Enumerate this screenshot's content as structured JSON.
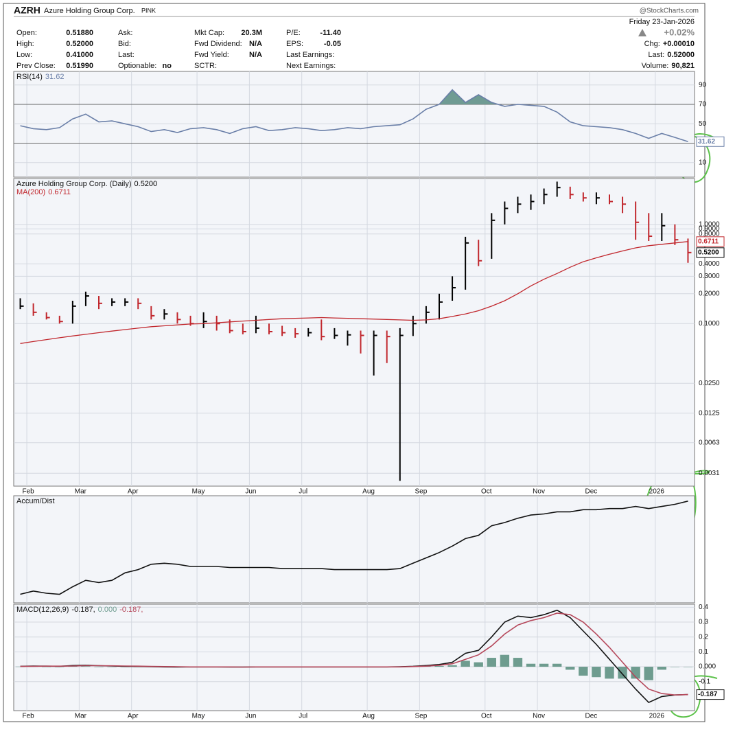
{
  "header": {
    "ticker": "AZRH",
    "name": "Azure Holding Group Corp.",
    "exchange": "PINK",
    "source": "@StockCharts.com",
    "date": "Friday 23-Jan-2026",
    "change_pct": "+0.02%",
    "fields": [
      [
        {
          "label": "Open:",
          "value": "0.51880"
        },
        {
          "label": "High:",
          "value": "0.52000"
        },
        {
          "label": "Low:",
          "value": "0.41000"
        },
        {
          "label": "Prev Close:",
          "value": "0.51990"
        }
      ],
      [
        {
          "label": "Ask:"
        },
        {
          "label": "Bid:"
        },
        {
          "label": "Last:"
        },
        {
          "label": "Optionable:",
          "value": "no"
        }
      ],
      [
        {
          "label": "Mkt Cap:",
          "value": "20.3M"
        },
        {
          "label": "Fwd Dividend:",
          "value": "N/A"
        },
        {
          "label": "Fwd Yield:",
          "value": "N/A"
        },
        {
          "label": "SCTR:"
        }
      ],
      [
        {
          "label": "P/E:",
          "value": "-11.40"
        },
        {
          "label": "EPS:",
          "value": "-0.05"
        },
        {
          "label": "Last Earnings:"
        },
        {
          "label": "Next Earnings:"
        }
      ]
    ],
    "right_fields": [
      {
        "label": "Chg:",
        "value": "+0.00010"
      },
      {
        "label": "Last:",
        "value": "0.52000"
      },
      {
        "label": "Volume:",
        "value": "90,821"
      }
    ]
  },
  "chart_data": [
    {
      "type": "line",
      "title": "RSI(14)",
      "ylim": [
        -5,
        104
      ],
      "yticks": [
        10,
        50,
        70,
        90
      ],
      "ref_lines": [
        30,
        70
      ],
      "shade_above": 70,
      "shade_color": "#6f9b93",
      "series": [
        {
          "color": "#6a7fa8",
          "legend_value": "31.62",
          "value_box": "31.62",
          "values": [
            48,
            45,
            44,
            46,
            55,
            60,
            52,
            53,
            50,
            47,
            42,
            44,
            41,
            45,
            46,
            44,
            40,
            45,
            47,
            43,
            44,
            46,
            45,
            43,
            44,
            46,
            45,
            47,
            48,
            49,
            55,
            65,
            70,
            85,
            72,
            80,
            72,
            68,
            70,
            69,
            68,
            62,
            52,
            48,
            47,
            46,
            44,
            40,
            35,
            40,
            36,
            31.62
          ]
        }
      ]
    },
    {
      "type": "ohlc",
      "log_scale": true,
      "ylim": [
        0.0023,
        2.9
      ],
      "yticks": [
        {
          "value": 0.0031,
          "label": "0.0031"
        },
        {
          "value": 0.0063,
          "label": "0.0063"
        },
        {
          "value": 0.0125,
          "label": "0.0125"
        },
        {
          "value": 0.025,
          "label": "0.0250"
        },
        {
          "value": 0.1,
          "label": "0.1000"
        },
        {
          "value": 0.2,
          "label": "0.2000"
        },
        {
          "value": 0.3,
          "label": "0.3000"
        },
        {
          "value": 0.4,
          "label": "0.4000"
        },
        {
          "value": 0.8,
          "label": "0.8000"
        },
        {
          "value": 0.9,
          "label": "0.9000"
        },
        {
          "value": 1,
          "label": "1.0000"
        }
      ],
      "categories": [
        null,
        "Feb",
        null,
        null,
        null,
        "Mar",
        null,
        null,
        null,
        "Apr",
        null,
        null,
        null,
        null,
        "May",
        null,
        null,
        null,
        "Jun",
        null,
        null,
        null,
        "Jul",
        null,
        null,
        null,
        null,
        "Aug",
        null,
        null,
        null,
        "Sep",
        null,
        null,
        null,
        null,
        "Oct",
        null,
        null,
        null,
        "Nov",
        null,
        null,
        null,
        "Dec",
        null,
        null,
        null,
        null,
        "2026",
        null,
        null
      ],
      "series": [
        {
          "name": "Azure Holding Group Corp. (Daily)",
          "color": "#000000",
          "down_color": "#c1272d",
          "legend_value": "0.5200",
          "value_box": "0.5200",
          "values": [
            0.15,
            0.13,
            0.115,
            0.105,
            0.15,
            0.19,
            0.16,
            0.165,
            0.165,
            0.16,
            0.12,
            0.125,
            0.11,
            0.1,
            0.105,
            0.1,
            0.085,
            0.083,
            0.09,
            0.083,
            0.081,
            0.079,
            0.081,
            0.074,
            0.076,
            0.077,
            0.076,
            0.076,
            0.074,
            0.076,
            0.1,
            0.13,
            0.165,
            0.23,
            0.65,
            0.43,
            1.1,
            1.45,
            1.6,
            1.7,
            2.0,
            2.35,
            2.0,
            1.85,
            1.85,
            1.7,
            1.6,
            1.05,
            0.76,
            0.97,
            0.7,
            0.52
          ],
          "high": [
            0.18,
            0.16,
            0.13,
            0.12,
            0.17,
            0.21,
            0.19,
            0.18,
            0.18,
            0.18,
            0.15,
            0.14,
            0.13,
            0.12,
            0.13,
            0.12,
            0.11,
            0.1,
            0.12,
            0.1,
            0.095,
            0.09,
            0.09,
            0.11,
            0.09,
            0.085,
            0.085,
            0.085,
            0.085,
            0.09,
            0.12,
            0.15,
            0.2,
            0.3,
            0.75,
            0.7,
            1.3,
            1.7,
            1.9,
            2.0,
            2.3,
            2.7,
            2.4,
            2.1,
            2.1,
            2.0,
            1.9,
            1.7,
            1.3,
            1.3,
            1.0,
            0.72
          ],
          "low": [
            0.14,
            0.12,
            0.11,
            0.1,
            0.1,
            0.15,
            0.14,
            0.15,
            0.15,
            0.14,
            0.11,
            0.11,
            0.1,
            0.095,
            0.09,
            0.085,
            0.08,
            0.078,
            0.08,
            0.078,
            0.075,
            0.072,
            0.074,
            0.068,
            0.07,
            0.06,
            0.05,
            0.03,
            0.04,
            0.0026,
            0.075,
            0.1,
            0.11,
            0.17,
            0.22,
            0.38,
            0.45,
            1.0,
            1.3,
            1.4,
            1.6,
            1.9,
            1.8,
            1.7,
            1.6,
            1.6,
            1.3,
            0.7,
            0.68,
            0.68,
            0.62,
            0.41
          ]
        },
        {
          "name": "MA(200)",
          "color": "#c1272d",
          "legend_value": "0.6711",
          "value_box": "0.6711",
          "values": [
            0.063,
            0.066,
            0.069,
            0.072,
            0.075,
            0.078,
            0.081,
            0.084,
            0.087,
            0.09,
            0.093,
            0.095,
            0.097,
            0.099,
            0.1,
            0.102,
            0.104,
            0.106,
            0.108,
            0.11,
            0.112,
            0.113,
            0.114,
            0.115,
            0.114,
            0.113,
            0.112,
            0.111,
            0.11,
            0.109,
            0.108,
            0.109,
            0.112,
            0.118,
            0.125,
            0.135,
            0.15,
            0.17,
            0.2,
            0.24,
            0.28,
            0.32,
            0.37,
            0.42,
            0.46,
            0.5,
            0.54,
            0.58,
            0.61,
            0.63,
            0.65,
            0.6711
          ]
        }
      ]
    },
    {
      "type": "line",
      "title": "Accum/Dist",
      "ylim": [
        0,
        100
      ],
      "yticks": [],
      "series": [
        {
          "color": "#111111",
          "values": [
            8,
            11,
            9,
            8,
            15,
            21,
            19,
            21,
            28,
            31,
            36,
            37,
            36,
            34,
            34,
            34,
            33,
            33,
            33,
            33,
            32,
            32,
            32,
            32,
            31,
            31,
            31,
            31,
            31,
            32,
            37,
            42,
            47,
            53,
            60,
            63,
            72,
            75,
            79,
            82,
            83,
            85,
            85,
            87,
            87,
            88,
            88,
            90,
            88,
            90,
            92,
            95
          ]
        }
      ]
    },
    {
      "type": "line",
      "title": "MACD(12,26,9)",
      "ylim": [
        -0.295,
        0.42
      ],
      "yticks": [
        -0.1,
        {
          "value": 0,
          "label": "0.000"
        },
        0.1,
        0.2,
        0.3,
        0.4
      ],
      "categories": [
        null,
        "Feb",
        null,
        null,
        null,
        "Mar",
        null,
        null,
        null,
        "Apr",
        null,
        null,
        null,
        null,
        "May",
        null,
        null,
        null,
        "Jun",
        null,
        null,
        null,
        "Jul",
        null,
        null,
        null,
        null,
        "Aug",
        null,
        null,
        null,
        "Sep",
        null,
        null,
        null,
        null,
        "Oct",
        null,
        null,
        null,
        "Nov",
        null,
        null,
        null,
        "Dec",
        null,
        null,
        null,
        null,
        "2026",
        null,
        null
      ],
      "series": [
        {
          "type": "bar",
          "color": "#6e9c8f",
          "legend_value": "0.000",
          "values": [
            0.001,
            0.002,
            0,
            -0.001,
            0.003,
            0.003,
            0,
            -0.001,
            -0.002,
            -0.002,
            -0.002,
            -0.002,
            -0.002,
            0,
            0,
            0,
            -0.001,
            0,
            0,
            0,
            0,
            0,
            0,
            0,
            0,
            0,
            0,
            0,
            0,
            0.001,
            0.002,
            0.004,
            0.005,
            0.01,
            0.04,
            0.03,
            0.06,
            0.08,
            0.06,
            0.02,
            0.02,
            0.02,
            -0.02,
            -0.06,
            -0.07,
            -0.08,
            -0.08,
            -0.08,
            -0.09,
            -0.02,
            0,
            0
          ]
        },
        {
          "color": "#111111",
          "legend_value": "-0.187,",
          "value_box": "-0.187",
          "legend_order": 0,
          "values": [
            0.003,
            0.005,
            0.004,
            0.003,
            0.008,
            0.01,
            0.007,
            0.005,
            0.003,
            0.002,
            0,
            -0.001,
            -0.002,
            -0.001,
            -0.001,
            -0.001,
            -0.002,
            -0.002,
            -0.001,
            -0.001,
            -0.001,
            -0.001,
            -0.001,
            -0.001,
            -0.001,
            -0.001,
            -0.001,
            -0.001,
            -0.001,
            0,
            0.003,
            0.008,
            0.015,
            0.03,
            0.09,
            0.11,
            0.2,
            0.3,
            0.34,
            0.33,
            0.35,
            0.38,
            0.33,
            0.24,
            0.15,
            0.05,
            -0.05,
            -0.15,
            -0.24,
            -0.2,
            -0.19,
            -0.187
          ]
        },
        {
          "color": "#b5475a",
          "legend_value": "-0.187,",
          "values": [
            0.002,
            0.003,
            0.004,
            0.004,
            0.005,
            0.007,
            0.007,
            0.006,
            0.005,
            0.004,
            0.002,
            0.001,
            0,
            -0.001,
            -0.001,
            -0.001,
            -0.001,
            -0.002,
            -0.001,
            -0.001,
            -0.001,
            -0.001,
            -0.001,
            -0.001,
            -0.001,
            -0.001,
            -0.001,
            -0.001,
            -0.001,
            -0.001,
            0.001,
            0.004,
            0.01,
            0.02,
            0.05,
            0.08,
            0.14,
            0.22,
            0.28,
            0.31,
            0.33,
            0.36,
            0.35,
            0.3,
            0.22,
            0.13,
            0.03,
            -0.07,
            -0.15,
            -0.18,
            -0.19,
            -0.187
          ]
        }
      ]
    }
  ]
}
